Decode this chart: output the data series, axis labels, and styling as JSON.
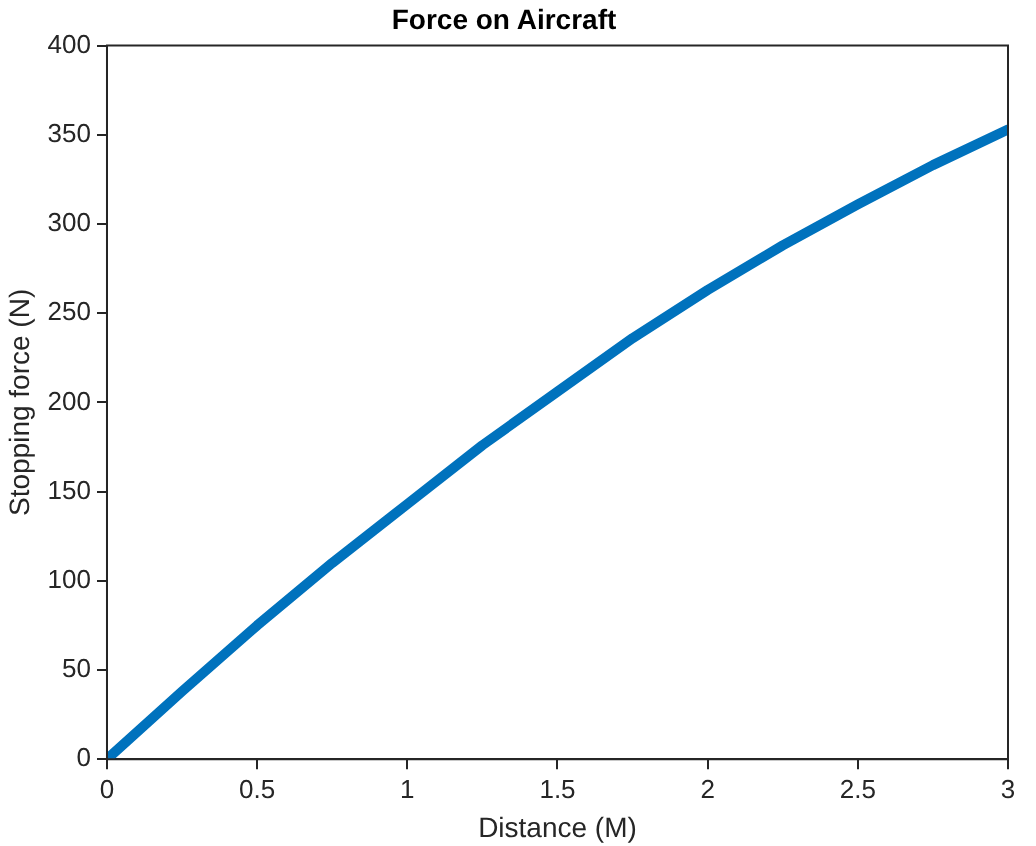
{
  "chart_data": {
    "type": "line",
    "title": "Force on Aircraft",
    "xlabel": "Distance (M)",
    "ylabel": "Stopping force (N)",
    "x": [
      0,
      0.25,
      0.5,
      0.75,
      1,
      1.25,
      1.5,
      1.75,
      2,
      2.25,
      2.5,
      2.75,
      3
    ],
    "series": [
      {
        "color": "#0072bd",
        "values": [
          0,
          38,
          75,
          110,
          143,
          176,
          206,
          236,
          263,
          288,
          311,
          333,
          353
        ]
      }
    ],
    "xlim": [
      0,
      3
    ],
    "xticks": [
      0,
      0.5,
      1,
      1.5,
      2,
      2.5,
      3
    ],
    "ylim": [
      0,
      400
    ],
    "yticks": [
      0,
      50,
      100,
      150,
      200,
      250,
      300,
      350,
      400
    ],
    "grid": false,
    "legend": false,
    "marker": "none",
    "line_style": "solid"
  }
}
